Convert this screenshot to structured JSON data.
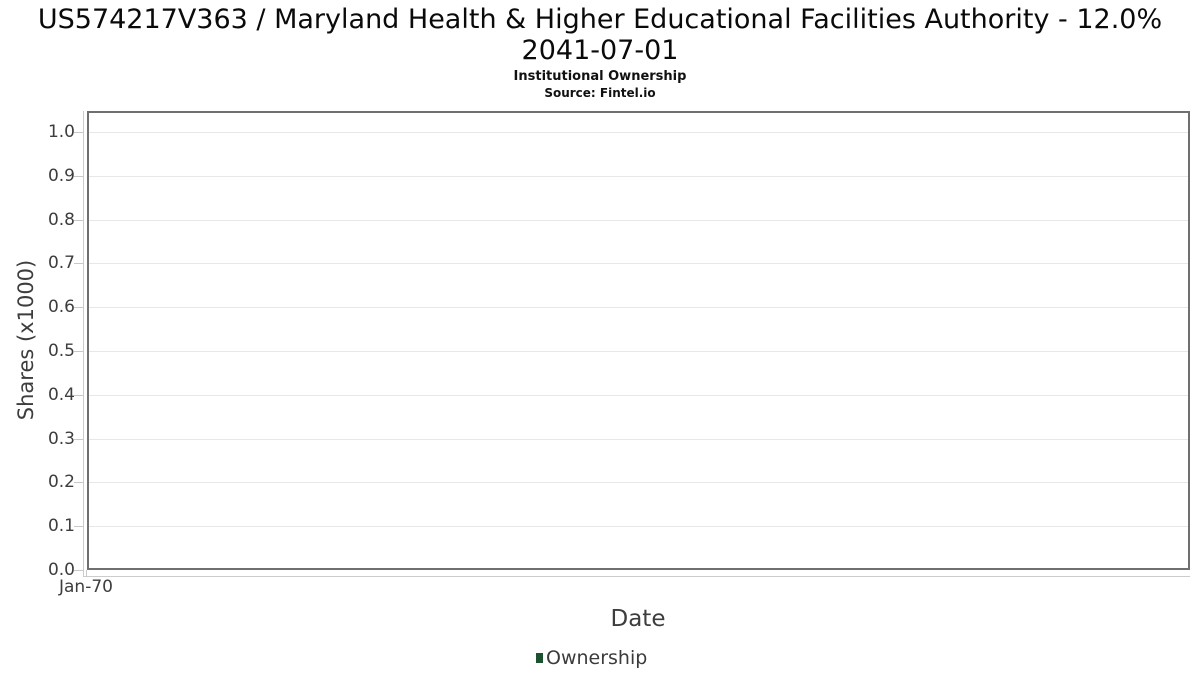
{
  "header": {
    "title_line1": "US574217V363 / Maryland Health & Higher Educational Facilities Authority - 12.0%",
    "title_line2": "2041-07-01",
    "subtitle": "Institutional Ownership",
    "source": "Source: Fintel.io"
  },
  "chart_data": {
    "type": "line",
    "title": "US574217V363 / Maryland Health & Higher Educational Facilities Authority - 12.0% 2041-07-01",
    "subtitle": "Institutional Ownership",
    "source": "Source: Fintel.io",
    "xlabel": "Date",
    "ylabel": "Shares (x1000)",
    "x_ticks": [
      "Jan-70"
    ],
    "y_ticks": [
      "0.0",
      "0.1",
      "0.2",
      "0.3",
      "0.4",
      "0.5",
      "0.6",
      "0.7",
      "0.8",
      "0.9",
      "1.0"
    ],
    "ylim": [
      0.0,
      1.05
    ],
    "grid": "horizontal-only",
    "legend_position": "bottom-center",
    "series": [
      {
        "name": "Ownership",
        "color": "#1d5230",
        "x": [],
        "values": []
      }
    ]
  },
  "colors": {
    "background": "#ffffff",
    "axis_border": "#6f6f6f",
    "gridline": "#e7e7e7",
    "tick_line": "#c8c8c8",
    "text_dark": "#0a0a0a",
    "text_axis": "#3d3d3d",
    "series_green": "#1d5230"
  },
  "legend": {
    "entries": [
      {
        "label": "Ownership",
        "color": "#1d5230"
      }
    ]
  }
}
